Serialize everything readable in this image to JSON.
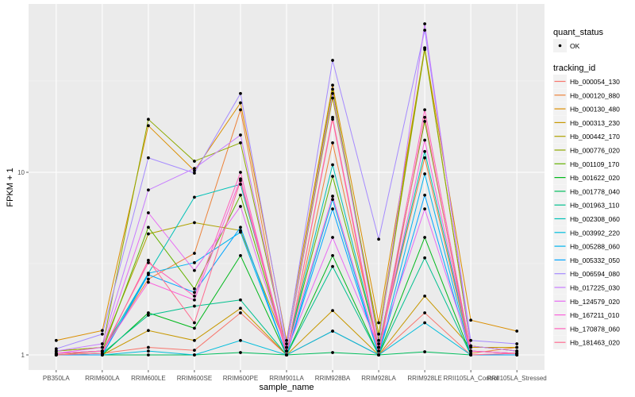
{
  "chart_data": {
    "type": "line",
    "title": "",
    "xlabel": "sample_name",
    "ylabel": "FPKM + 1",
    "y_scale": "log10",
    "ylim": [
      0.93,
      72
    ],
    "y_ticks": [
      1,
      10
    ],
    "y_tick_labels": [
      "1",
      "10"
    ],
    "grid": true,
    "categories": [
      "PB350LA",
      "RRIM600LA",
      "RRIM600LE",
      "RRIM600SE",
      "RRIM600PE",
      "RRIM901LA",
      "RRIM928BA",
      "RRIM928LA",
      "RRIM928LE",
      "RRII105LA_Control",
      "RRII105LA_Stressed"
    ],
    "legend_position": "right",
    "shape_legend": {
      "title": "quant_status",
      "items": [
        "OK"
      ]
    },
    "color_legend_title": "tracking_id",
    "series": [
      {
        "name": "Hb_000054_130",
        "color": "#F8766D",
        "values": [
          1.0,
          1.02,
          1.1,
          1.06,
          1.7,
          1.0,
          1.35,
          1.0,
          1.7,
          1.0,
          1.02
        ]
      },
      {
        "name": "Hb_000120_880",
        "color": "#EC8239",
        "values": [
          1.0,
          1.05,
          2.6,
          3.6,
          22.0,
          1.0,
          14.5,
          1.1,
          12.0,
          1.02,
          1.1
        ]
      },
      {
        "name": "Hb_000130_480",
        "color": "#DB8E00",
        "values": [
          1.2,
          1.36,
          18.0,
          10.2,
          24.0,
          1.2,
          30.0,
          1.5,
          48.0,
          1.55,
          1.35
        ]
      },
      {
        "name": "Hb_000313_230",
        "color": "#C79800",
        "values": [
          1.0,
          1.0,
          1.36,
          1.2,
          1.8,
          1.0,
          1.75,
          1.0,
          2.1,
          1.1,
          1.1
        ]
      },
      {
        "name": "Hb_000442_170",
        "color": "#AEA200",
        "values": [
          1.05,
          1.1,
          4.6,
          5.3,
          4.8,
          1.1,
          25.5,
          1.3,
          48.0,
          1.12,
          1.05
        ]
      },
      {
        "name": "Hb_000776_020",
        "color": "#8FAA00",
        "values": [
          1.05,
          1.1,
          19.5,
          11.5,
          14.5,
          1.1,
          28.5,
          1.2,
          47.0,
          1.12,
          1.05
        ]
      },
      {
        "name": "Hb_001109_170",
        "color": "#64B200",
        "values": [
          1.02,
          1.05,
          5.0,
          2.3,
          7.5,
          1.05,
          9.5,
          1.1,
          19.0,
          1.05,
          1.02
        ]
      },
      {
        "name": "Hb_001622_020",
        "color": "#00B81B",
        "values": [
          1.0,
          1.0,
          1.7,
          1.4,
          3.5,
          1.0,
          3.5,
          1.0,
          4.4,
          1.0,
          1.0
        ]
      },
      {
        "name": "Hb_001778_040",
        "color": "#00BD5C",
        "values": [
          1.0,
          1.0,
          1.0,
          1.0,
          1.03,
          1.0,
          1.03,
          1.0,
          1.04,
          1.0,
          1.0
        ]
      },
      {
        "name": "Hb_001963_110",
        "color": "#00C08E",
        "values": [
          1.0,
          1.02,
          1.65,
          1.85,
          2.0,
          1.0,
          3.05,
          1.0,
          3.4,
          1.0,
          1.0
        ]
      },
      {
        "name": "Hb_002308_060",
        "color": "#00C1B7",
        "values": [
          1.02,
          1.05,
          2.8,
          7.3,
          8.6,
          1.05,
          11.0,
          1.1,
          13.0,
          1.05,
          1.02
        ]
      },
      {
        "name": "Hb_003992_220",
        "color": "#00BDDC",
        "values": [
          1.0,
          1.0,
          1.05,
          1.0,
          1.2,
          1.0,
          1.35,
          1.0,
          1.5,
          1.0,
          1.0
        ]
      },
      {
        "name": "Hb_005288_060",
        "color": "#00B4EF",
        "values": [
          1.0,
          1.0,
          2.8,
          3.2,
          4.7,
          1.0,
          7.1,
          1.0,
          9.8,
          1.0,
          1.0
        ]
      },
      {
        "name": "Hb_005332_050",
        "color": "#00A5FF",
        "values": [
          1.0,
          1.0,
          2.75,
          2.2,
          5.0,
          1.0,
          6.3,
          1.0,
          7.5,
          1.0,
          1.0
        ]
      },
      {
        "name": "Hb_006594_080",
        "color": "#A58AFF",
        "values": [
          1.08,
          1.3,
          12.0,
          9.9,
          27.0,
          1.15,
          41.0,
          4.3,
          60.0,
          1.2,
          1.15
        ]
      },
      {
        "name": "Hb_017225_030",
        "color": "#C77CFF",
        "values": [
          1.05,
          1.15,
          8.0,
          10.5,
          16.0,
          1.1,
          27.0,
          1.15,
          65.0,
          1.12,
          1.05
        ]
      },
      {
        "name": "Hb_124579_020",
        "color": "#E76BF3",
        "values": [
          1.02,
          1.1,
          6.0,
          2.9,
          6.5,
          1.05,
          4.4,
          1.1,
          6.3,
          1.05,
          1.02
        ]
      },
      {
        "name": "Hb_167211_010",
        "color": "#FA62DB",
        "values": [
          1.02,
          1.05,
          2.5,
          2.0,
          9.2,
          1.05,
          7.4,
          1.05,
          15.0,
          1.05,
          1.02
        ]
      },
      {
        "name": "Hb_170878_060",
        "color": "#FF62BC",
        "values": [
          1.02,
          1.05,
          3.2,
          2.1,
          10.0,
          1.0,
          20.0,
          1.05,
          22.0,
          1.05,
          1.02
        ]
      },
      {
        "name": "Hb_181463_020",
        "color": "#FF6C91",
        "values": [
          1.0,
          1.02,
          3.3,
          1.5,
          9.0,
          1.0,
          19.5,
          1.0,
          20.0,
          1.0,
          1.02
        ]
      }
    ]
  }
}
